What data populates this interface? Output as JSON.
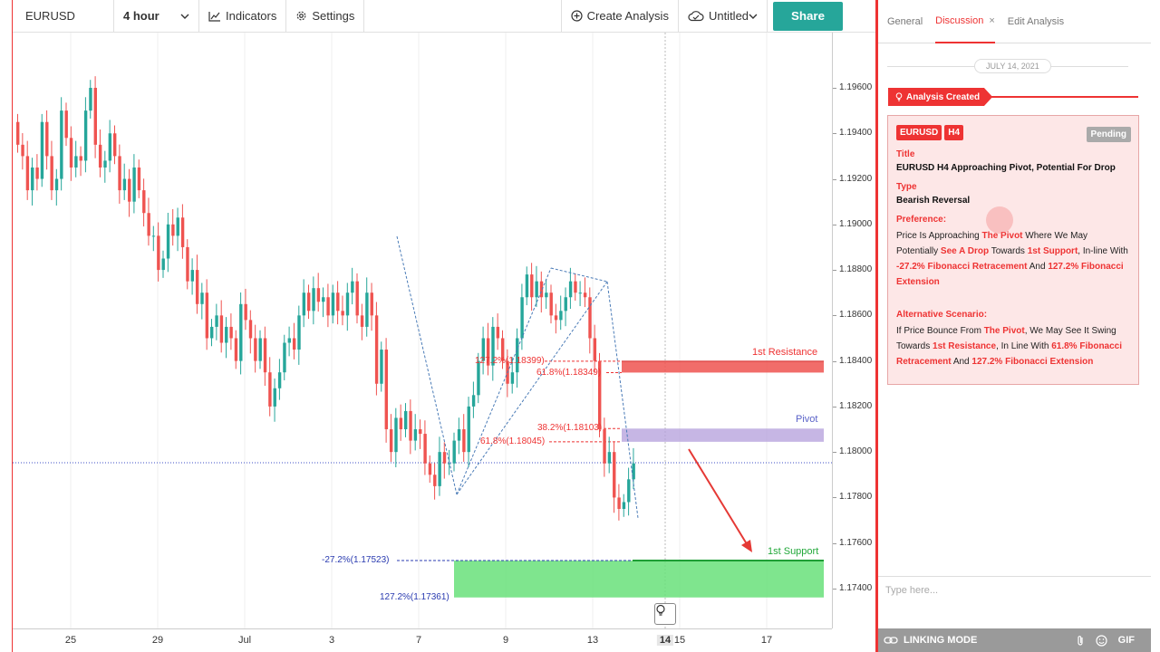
{
  "toolbar": {
    "symbol": "EURUSD",
    "interval": "4 hour",
    "indicators": "Indicators",
    "settings": "Settings",
    "create_analysis": "Create Analysis",
    "untitled": "Untitled",
    "share": "Share"
  },
  "chart": {
    "price_ticks": [
      "1.19600",
      "1.19400",
      "1.19200",
      "1.19000",
      "1.18800",
      "1.18600",
      "1.18400",
      "1.18200",
      "1.18000",
      "1.17800",
      "1.17600",
      "1.17400"
    ],
    "time_ticks": [
      "25",
      "29",
      "Jul",
      "3",
      "7",
      "9",
      "13",
      "14",
      "15",
      "17"
    ],
    "zones": {
      "resistance": "1st Resistance",
      "pivot": "Pivot",
      "support": "1st Support"
    },
    "fib_labels": {
      "f1": "127.2%(1.18399)",
      "f2": "61.8%(1.18349)",
      "f3": "38.2%(1.18103)",
      "f4": "61.8%(1.18045)",
      "f5": "-27.2%(1.17523)",
      "f6": "127.2%(1.17361)"
    },
    "colors": {
      "bull": "#26a69a",
      "bear": "#ef5350",
      "resistance": "#ef5350",
      "pivot": "#b39ddb",
      "support": "#69e07a"
    }
  },
  "panel": {
    "tabs": [
      "General",
      "Discussion",
      "Edit Analysis"
    ],
    "date": "JULY 14, 2021",
    "created": "Analysis Created",
    "chip_symbol": "EURUSD",
    "chip_tf": "H4",
    "status": "Pending",
    "title_label": "Title",
    "title_value": "EURUSD H4 Approaching Pivot, Potential For Drop",
    "type_label": "Type",
    "type_value": "Bearish Reversal",
    "pref_label": "Preference:",
    "pref_parts": [
      "Price Is Approaching ",
      "The Pivot",
      " Where We May Potentially ",
      "See A Drop",
      " Towards ",
      "1st Support",
      ", In-line With ",
      "-27.2% Fibonacci Retracement",
      " And ",
      "127.2% Fibonacci Extension"
    ],
    "alt_label": "Alternative Scenario:",
    "alt_parts": [
      "If Price Bounce From ",
      "The Pivot",
      ", We May See It Swing Towards ",
      "1st Resistance",
      ", In Line With ",
      "61.8% Fibonacci Retracement",
      " And ",
      "127.2% Fibonacci Extension"
    ],
    "input_placeholder": "Type here...",
    "linking_mode": "LINKING MODE",
    "gif": "GIF"
  }
}
